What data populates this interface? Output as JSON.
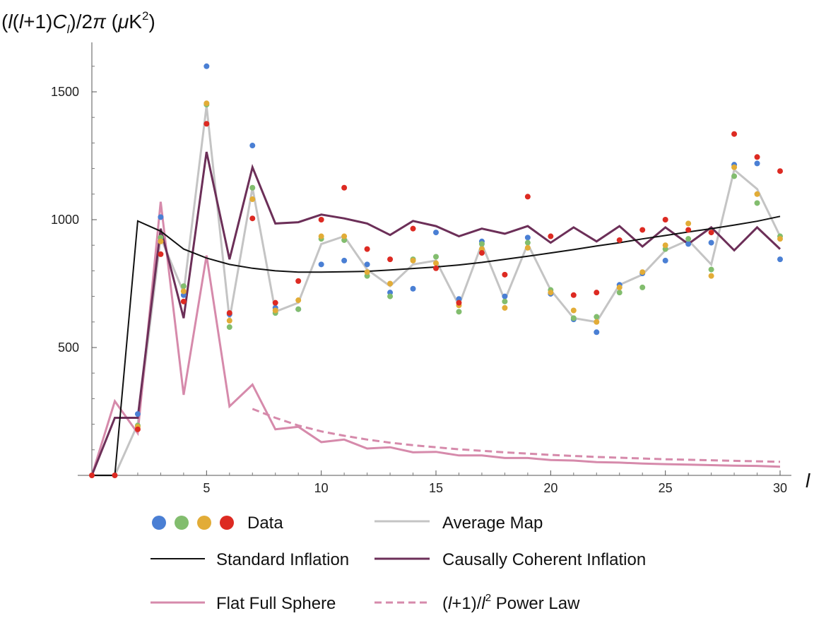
{
  "chart_data": {
    "type": "line",
    "title": "",
    "ylabel": "(l(l+1)C_l)/2π (μK²)",
    "xlabel": "l",
    "xlim": [
      0,
      30
    ],
    "ylim": [
      0,
      1700
    ],
    "x_ticks": [
      5,
      10,
      15,
      20,
      25,
      30
    ],
    "y_ticks": [
      500,
      1000,
      1500
    ],
    "grid": false,
    "colors": {
      "data_blue": "#4a7fd4",
      "data_green": "#82bd6e",
      "data_yellow": "#e2ac37",
      "data_red": "#dd2a22",
      "average_map": "#c4c4c4",
      "standard_inflation": "#111111",
      "causally_coherent": "#6c2f58",
      "flat_full_sphere": "#d68aab",
      "power_law": "#d68aab"
    },
    "data_series": [
      {
        "name": "Data (blue)",
        "color_key": "data_blue",
        "x": [
          2,
          3,
          4,
          5,
          6,
          7,
          8,
          9,
          10,
          11,
          12,
          13,
          14,
          15,
          16,
          17,
          18,
          19,
          20,
          21,
          22,
          23,
          24,
          25,
          26,
          27,
          28,
          29,
          30
        ],
        "y": [
          240,
          1010,
          705,
          1600,
          630,
          1290,
          655,
          650,
          825,
          840,
          825,
          715,
          730,
          950,
          690,
          915,
          700,
          930,
          710,
          610,
          560,
          745,
          790,
          840,
          905,
          910,
          1215,
          1220,
          845
        ]
      },
      {
        "name": "Data (green)",
        "color_key": "data_green",
        "x": [
          2,
          3,
          4,
          5,
          6,
          7,
          8,
          9,
          10,
          11,
          12,
          13,
          14,
          15,
          16,
          17,
          18,
          19,
          20,
          21,
          22,
          23,
          24,
          25,
          26,
          27,
          28,
          29,
          30
        ],
        "y": [
          195,
          930,
          740,
          1450,
          580,
          1125,
          635,
          650,
          925,
          920,
          780,
          700,
          845,
          855,
          640,
          905,
          680,
          910,
          725,
          615,
          620,
          715,
          735,
          885,
          925,
          805,
          1170,
          1065,
          935
        ]
      },
      {
        "name": "Data (yellow)",
        "color_key": "data_yellow",
        "x": [
          2,
          3,
          4,
          5,
          6,
          7,
          8,
          9,
          10,
          11,
          12,
          13,
          14,
          15,
          16,
          17,
          18,
          19,
          20,
          21,
          22,
          23,
          24,
          25,
          26,
          27,
          28,
          29,
          30
        ],
        "y": [
          190,
          915,
          720,
          1455,
          605,
          1080,
          645,
          685,
          935,
          935,
          795,
          750,
          840,
          830,
          665,
          885,
          655,
          890,
          715,
          645,
          600,
          735,
          795,
          900,
          985,
          780,
          1205,
          1100,
          925
        ]
      },
      {
        "name": "Data (red)",
        "color_key": "data_red",
        "x": [
          2,
          3,
          4,
          5,
          6,
          7,
          8,
          9,
          10,
          11,
          12,
          13,
          14,
          15,
          16,
          17,
          18,
          19,
          20,
          21,
          22,
          23,
          24,
          25,
          26,
          27,
          28,
          29,
          30
        ],
        "y": [
          180,
          865,
          680,
          1375,
          635,
          1005,
          675,
          760,
          1000,
          1125,
          885,
          845,
          965,
          810,
          675,
          870,
          785,
          1090,
          935,
          705,
          715,
          920,
          960,
          1000,
          960,
          950,
          1335,
          1245,
          1190
        ]
      }
    ],
    "series": [
      {
        "name": "Average Map",
        "color_key": "average_map",
        "style": "solid",
        "x": [
          0,
          1,
          2,
          3,
          4,
          5,
          6,
          7,
          8,
          9,
          10,
          11,
          12,
          13,
          14,
          15,
          16,
          17,
          18,
          19,
          20,
          21,
          22,
          23,
          24,
          25,
          26,
          27,
          28,
          29,
          30
        ],
        "y": [
          0,
          0,
          200,
          930,
          715,
          1445,
          610,
          1125,
          640,
          675,
          905,
          935,
          805,
          740,
          825,
          840,
          665,
          905,
          685,
          905,
          725,
          615,
          600,
          745,
          785,
          880,
          920,
          825,
          1195,
          1120,
          935
        ]
      },
      {
        "name": "Standard Inflation",
        "color_key": "standard_inflation",
        "style": "solid",
        "x": [
          0,
          1,
          2,
          3,
          4,
          5,
          6,
          7,
          8,
          9,
          10,
          11,
          12,
          13,
          14,
          15,
          16,
          17,
          18,
          19,
          20,
          21,
          22,
          23,
          24,
          25,
          26,
          27,
          28,
          29,
          30
        ],
        "y": [
          0,
          0,
          995,
          955,
          885,
          850,
          825,
          810,
          800,
          795,
          795,
          796,
          798,
          803,
          809,
          815,
          823,
          833,
          845,
          857,
          870,
          883,
          897,
          910,
          925,
          938,
          952,
          965,
          979,
          994,
          1013
        ]
      },
      {
        "name": "Causally Coherent Inflation",
        "color_key": "causally_coherent",
        "style": "solid",
        "x": [
          0,
          1,
          2,
          3,
          4,
          5,
          6,
          7,
          8,
          9,
          10,
          11,
          12,
          13,
          14,
          15,
          16,
          17,
          18,
          19,
          20,
          21,
          22,
          23,
          24,
          25,
          26,
          27,
          28,
          29,
          30
        ],
        "y": [
          0,
          225,
          225,
          965,
          615,
          1265,
          845,
          1205,
          985,
          990,
          1020,
          1005,
          985,
          940,
          995,
          975,
          935,
          965,
          945,
          975,
          910,
          970,
          915,
          975,
          895,
          970,
          905,
          970,
          880,
          970,
          885
        ]
      },
      {
        "name": "Flat Full Sphere",
        "color_key": "flat_full_sphere",
        "style": "solid",
        "x": [
          0,
          1,
          2,
          3,
          4,
          5,
          6,
          7,
          8,
          9,
          10,
          11,
          12,
          13,
          14,
          15,
          16,
          17,
          18,
          19,
          20,
          21,
          22,
          23,
          24,
          25,
          26,
          27,
          28,
          29,
          30
        ],
        "y": [
          0,
          290,
          165,
          1070,
          315,
          860,
          270,
          355,
          180,
          190,
          130,
          140,
          105,
          110,
          90,
          92,
          78,
          78,
          68,
          68,
          60,
          58,
          52,
          50,
          46,
          44,
          42,
          40,
          38,
          37,
          34
        ]
      },
      {
        "name": "(l+1)/l^2 Power Law",
        "color_key": "power_law",
        "style": "dashed",
        "x": [
          7,
          8,
          9,
          10,
          11,
          12,
          13,
          14,
          15,
          16,
          17,
          18,
          19,
          20,
          21,
          22,
          23,
          24,
          25,
          26,
          27,
          28,
          29,
          30
        ],
        "y": [
          260,
          225,
          195,
          172,
          155,
          140,
          128,
          118,
          110,
          102,
          96,
          90,
          85,
          80,
          76,
          72,
          69,
          66,
          63,
          61,
          59,
          57,
          55,
          53
        ]
      }
    ],
    "legend": {
      "position": "bottom",
      "entries": [
        {
          "label": "Data",
          "kind": "dots"
        },
        {
          "label": "Average Map",
          "kind": "line"
        },
        {
          "label": "Standard Inflation",
          "kind": "line"
        },
        {
          "label": "Causally Coherent Inflation",
          "kind": "line"
        },
        {
          "label": "Flat Full Sphere",
          "kind": "line"
        },
        {
          "label_prefix": "(l+1)/l",
          "label_sup": "2",
          "label_suffix": " Power Law",
          "kind": "dashed"
        }
      ]
    }
  }
}
